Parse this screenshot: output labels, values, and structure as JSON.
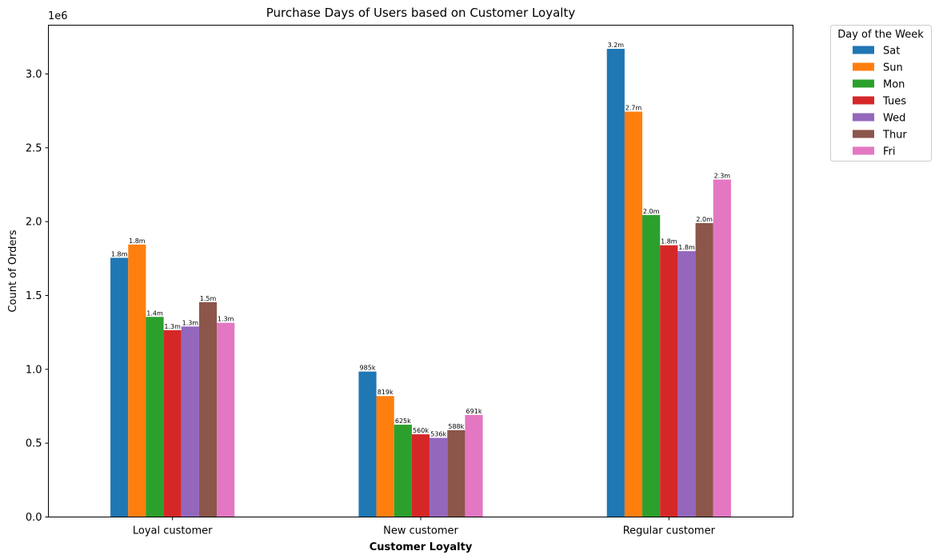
{
  "chart_data": {
    "type": "bar",
    "title": "Purchase Days of Users based on Customer Loyalty",
    "xlabel": "Customer Loyalty",
    "ylabel": "Count of Orders",
    "y_offset_text": "1e6",
    "categories": [
      "Loyal customer",
      "New customer",
      "Regular customer"
    ],
    "ylim": [
      0,
      3330000
    ],
    "yticks": [
      {
        "value": 0,
        "label": "0.0"
      },
      {
        "value": 500000,
        "label": "0.5"
      },
      {
        "value": 1000000,
        "label": "1.0"
      },
      {
        "value": 1500000,
        "label": "1.5"
      },
      {
        "value": 2000000,
        "label": "2.0"
      },
      {
        "value": 2500000,
        "label": "2.5"
      },
      {
        "value": 3000000,
        "label": "3.0"
      }
    ],
    "legend_title": "Day of the Week",
    "legend_position": "outside top-right",
    "grid": false,
    "series": [
      {
        "name": "Sat",
        "color": "#1f77b4",
        "values": [
          1755000,
          985000,
          3170000
        ],
        "labels": [
          "1.8m",
          "985k",
          "3.2m"
        ]
      },
      {
        "name": "Sun",
        "color": "#ff7f0e",
        "values": [
          1845000,
          819000,
          2745000
        ],
        "labels": [
          "1.8m",
          "819k",
          "2.7m"
        ]
      },
      {
        "name": "Mon",
        "color": "#2ca02c",
        "values": [
          1355000,
          625000,
          2045000
        ],
        "labels": [
          "1.4m",
          "625k",
          "2.0m"
        ]
      },
      {
        "name": "Tues",
        "color": "#d62728",
        "values": [
          1265000,
          560000,
          1840000
        ],
        "labels": [
          "1.3m",
          "560k",
          "1.8m"
        ]
      },
      {
        "name": "Wed",
        "color": "#9467bd",
        "values": [
          1290000,
          536000,
          1800000
        ],
        "labels": [
          "1.3m",
          "536k",
          "1.8m"
        ]
      },
      {
        "name": "Thur",
        "color": "#8c564b",
        "values": [
          1455000,
          588000,
          1990000
        ],
        "labels": [
          "1.5m",
          "588k",
          "2.0m"
        ]
      },
      {
        "name": "Fri",
        "color": "#e377c2",
        "values": [
          1315000,
          691000,
          2285000
        ],
        "labels": [
          "1.3m",
          "691k",
          "2.3m"
        ]
      }
    ]
  }
}
